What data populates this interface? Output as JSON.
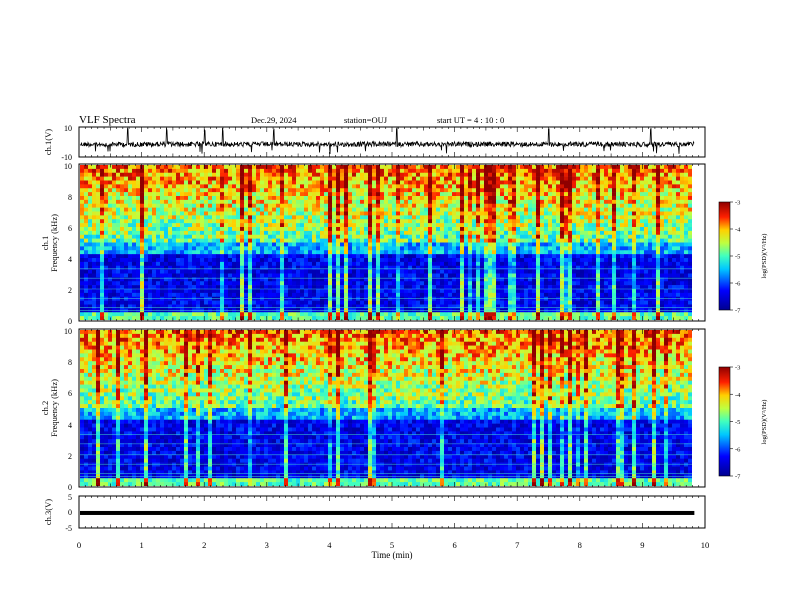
{
  "header": {
    "title": "VLF Spectra",
    "date": "Dec.29, 2024",
    "station": "station=OUJ",
    "start": "start  UT =  4 : 10 : 0"
  },
  "chart_data": [
    {
      "type": "line",
      "name_label": "ch.1(V)",
      "ylim": [
        -10,
        10
      ],
      "yticks": [
        "10",
        "-10"
      ],
      "xlim": [
        0,
        10
      ],
      "baseline": -1.5
    },
    {
      "type": "heatmap",
      "ylabel": "ch.1\nFrequency (kHz)",
      "ylabel_lines": [
        "ch.1",
        "Frequency (kHz)"
      ],
      "ylim": [
        0,
        10
      ],
      "yticks": [
        "0",
        "2",
        "4",
        "6",
        "8",
        "10"
      ],
      "xlim": [
        0,
        10
      ],
      "colorbar": {
        "label": "log(PSD)(V²/Hz)",
        "range": [
          -7,
          -3
        ],
        "ticks": [
          "-3",
          "-4",
          "-5",
          "-6",
          "-7"
        ]
      }
    },
    {
      "type": "heatmap",
      "ylabel_lines": [
        "ch.2",
        "Frequency (kHz)"
      ],
      "ylim": [
        0,
        10
      ],
      "yticks": [
        "0",
        "2",
        "4",
        "6",
        "8",
        "10"
      ],
      "xlim": [
        0,
        10
      ],
      "colorbar": {
        "label": "log(PSD)(V²/Hz)",
        "range": [
          -7,
          -3
        ],
        "ticks": [
          "-3",
          "-4",
          "-5",
          "-6",
          "-7"
        ]
      }
    },
    {
      "type": "line",
      "name_label": "ch.3(V)",
      "ylim": [
        -5,
        5
      ],
      "yticks": [
        "5",
        "0",
        "-5"
      ],
      "xlim": [
        0,
        10
      ],
      "baseline": -0.3
    }
  ],
  "xaxis": {
    "label": "Time (min)",
    "ticks": [
      "0",
      "1",
      "2",
      "3",
      "4",
      "5",
      "6",
      "7",
      "8",
      "9",
      "10"
    ],
    "data_end": 9.83
  },
  "colors": {
    "colormap": [
      "#00008f",
      "#0000ff",
      "#00ffff",
      "#7fff7f",
      "#ffff00",
      "#ff0000",
      "#7f0000"
    ]
  }
}
